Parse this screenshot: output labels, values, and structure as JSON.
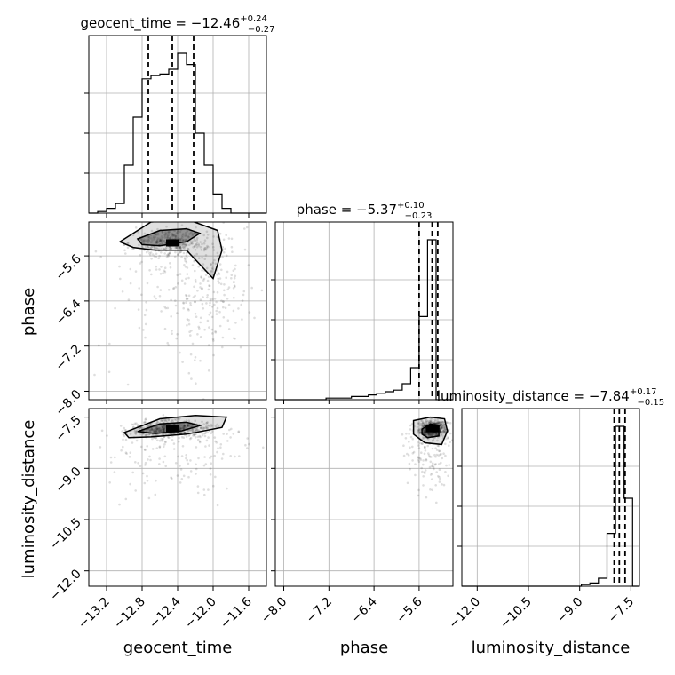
{
  "chart_data": {
    "type": "corner",
    "parameters": [
      "geocent_time",
      "phase",
      "luminosity_distance"
    ],
    "xlabels": [
      "geocent_time",
      "phase",
      "luminosity_distance"
    ],
    "ylabels": [
      "",
      "phase",
      "luminosity_distance"
    ],
    "ranges": {
      "geocent_time": [
        -13.4,
        -11.4
      ],
      "phase": [
        -8.15,
        -5.0
      ],
      "luminosity_distance": [
        -12.45,
        -7.25
      ]
    },
    "ticks": {
      "geocent_time": [
        -13.2,
        -12.8,
        -12.4,
        -12.0,
        -11.6
      ],
      "phase": [
        -8.0,
        -7.2,
        -6.4,
        -5.6
      ],
      "luminosity_distance": [
        -12.0,
        -10.5,
        -9.0,
        -7.5
      ]
    },
    "tick_labels": {
      "geocent_time": [
        "−13.2",
        "−12.8",
        "−12.4",
        "−12.0",
        "−11.6"
      ],
      "phase": [
        "−8.0",
        "−7.2",
        "−6.4",
        "−5.6"
      ],
      "luminosity_distance": [
        "−12.0",
        "−10.5",
        "−9.0",
        "−7.5"
      ]
    },
    "phase_ylabels": [
      "−5.6",
      "−6.4",
      "−7.2",
      "−8.0"
    ],
    "lumi_ylabels": [
      "−7.5",
      "−9.0",
      "−10.5",
      "−12.0"
    ],
    "titles": [
      {
        "param": "geocent_time",
        "prefix": "geocent_time = −12.46",
        "plus": "+0.24",
        "minus": "−0.27"
      },
      {
        "param": "phase",
        "prefix": "phase = −5.37",
        "plus": "+0.10",
        "minus": "−0.23"
      },
      {
        "param": "luminosity_distance",
        "prefix": "luminosity_distance = −7.84",
        "plus": "+0.17",
        "minus": "−0.15"
      }
    ],
    "medians": {
      "geocent_time": -12.46,
      "phase": -5.37,
      "luminosity_distance": -7.84
    },
    "quantiles": {
      "geocent_time": [
        -12.73,
        -12.46,
        -12.22
      ],
      "phase": [
        -5.6,
        -5.37,
        -5.27
      ],
      "luminosity_distance": [
        -7.99,
        -7.84,
        -7.67
      ]
    },
    "histograms": {
      "geocent_time": {
        "edges": [
          -13.4,
          -13.3,
          -13.2,
          -13.1,
          -13.0,
          -12.9,
          -12.8,
          -12.7,
          -12.6,
          -12.5,
          -12.4,
          -12.3,
          -12.2,
          -12.1,
          -12.0,
          -11.9,
          -11.8,
          -11.7,
          -11.6,
          -11.5,
          -11.4
        ],
        "counts": [
          0,
          1,
          3,
          6,
          30,
          60,
          84,
          86,
          87,
          90,
          100,
          93,
          50,
          30,
          12,
          3,
          0,
          0,
          0,
          0
        ]
      },
      "phase": {
        "edges": [
          -8.15,
          -8.0,
          -7.85,
          -7.7,
          -7.55,
          -7.4,
          -7.25,
          -7.1,
          -6.95,
          -6.8,
          -6.65,
          -6.5,
          -6.35,
          -6.2,
          -6.05,
          -5.9,
          -5.75,
          -5.6,
          -5.45,
          -5.3,
          -5.15,
          -5.0
        ],
        "counts": [
          0,
          0,
          0,
          0,
          0,
          0,
          1,
          1,
          1,
          2,
          2,
          3,
          4,
          5,
          6,
          10,
          20,
          52,
          100,
          0,
          0
        ]
      },
      "luminosity_distance": {
        "edges": [
          -12.45,
          -12.2,
          -11.95,
          -11.7,
          -11.45,
          -11.2,
          -10.95,
          -10.7,
          -10.45,
          -10.2,
          -9.95,
          -9.7,
          -9.45,
          -9.2,
          -8.95,
          -8.7,
          -8.45,
          -8.2,
          -7.95,
          -7.7,
          -7.45,
          -7.25
        ],
        "counts": [
          0,
          0,
          0,
          0,
          0,
          0,
          0,
          0,
          0,
          0,
          0,
          0,
          0,
          0,
          1,
          2,
          5,
          33,
          100,
          55,
          0
        ]
      }
    },
    "contours_2d": {
      "phase_vs_geocent_time": {
        "outer": [
          [
            -12.95,
            -5.25
          ],
          [
            -12.7,
            -5.0
          ],
          [
            -12.3,
            -4.95
          ],
          [
            -11.95,
            -5.15
          ],
          [
            -11.9,
            -5.5
          ],
          [
            -12.0,
            -6.0
          ],
          [
            -12.3,
            -5.5
          ],
          [
            -12.65,
            -5.5
          ],
          [
            -12.9,
            -5.45
          ],
          [
            -13.05,
            -5.35
          ]
        ],
        "inner": [
          [
            -12.85,
            -5.3
          ],
          [
            -12.6,
            -5.15
          ],
          [
            -12.3,
            -5.12
          ],
          [
            -12.15,
            -5.2
          ],
          [
            -12.3,
            -5.35
          ],
          [
            -12.6,
            -5.42
          ],
          [
            -12.8,
            -5.4
          ]
        ]
      },
      "luminosity_distance_vs_geocent_time": {
        "outer": [
          [
            -13.0,
            -7.95
          ],
          [
            -12.6,
            -7.55
          ],
          [
            -12.2,
            -7.45
          ],
          [
            -11.85,
            -7.5
          ],
          [
            -11.9,
            -7.8
          ],
          [
            -12.3,
            -8.0
          ],
          [
            -12.7,
            -8.08
          ],
          [
            -12.95,
            -8.1
          ]
        ],
        "inner": [
          [
            -12.85,
            -7.92
          ],
          [
            -12.6,
            -7.7
          ],
          [
            -12.3,
            -7.65
          ],
          [
            -12.15,
            -7.75
          ],
          [
            -12.35,
            -7.9
          ],
          [
            -12.65,
            -7.98
          ]
        ]
      },
      "luminosity_distance_vs_phase": {
        "outer": [
          [
            -5.7,
            -7.6
          ],
          [
            -5.4,
            -7.5
          ],
          [
            -5.15,
            -7.55
          ],
          [
            -5.1,
            -7.9
          ],
          [
            -5.2,
            -8.3
          ],
          [
            -5.5,
            -8.25
          ],
          [
            -5.7,
            -8.0
          ]
        ],
        "inner": [
          [
            -5.55,
            -7.85
          ],
          [
            -5.4,
            -7.7
          ],
          [
            -5.25,
            -7.75
          ],
          [
            -5.25,
            -8.05
          ],
          [
            -5.45,
            -8.1
          ],
          [
            -5.55,
            -8.0
          ]
        ]
      }
    },
    "grid": true
  }
}
